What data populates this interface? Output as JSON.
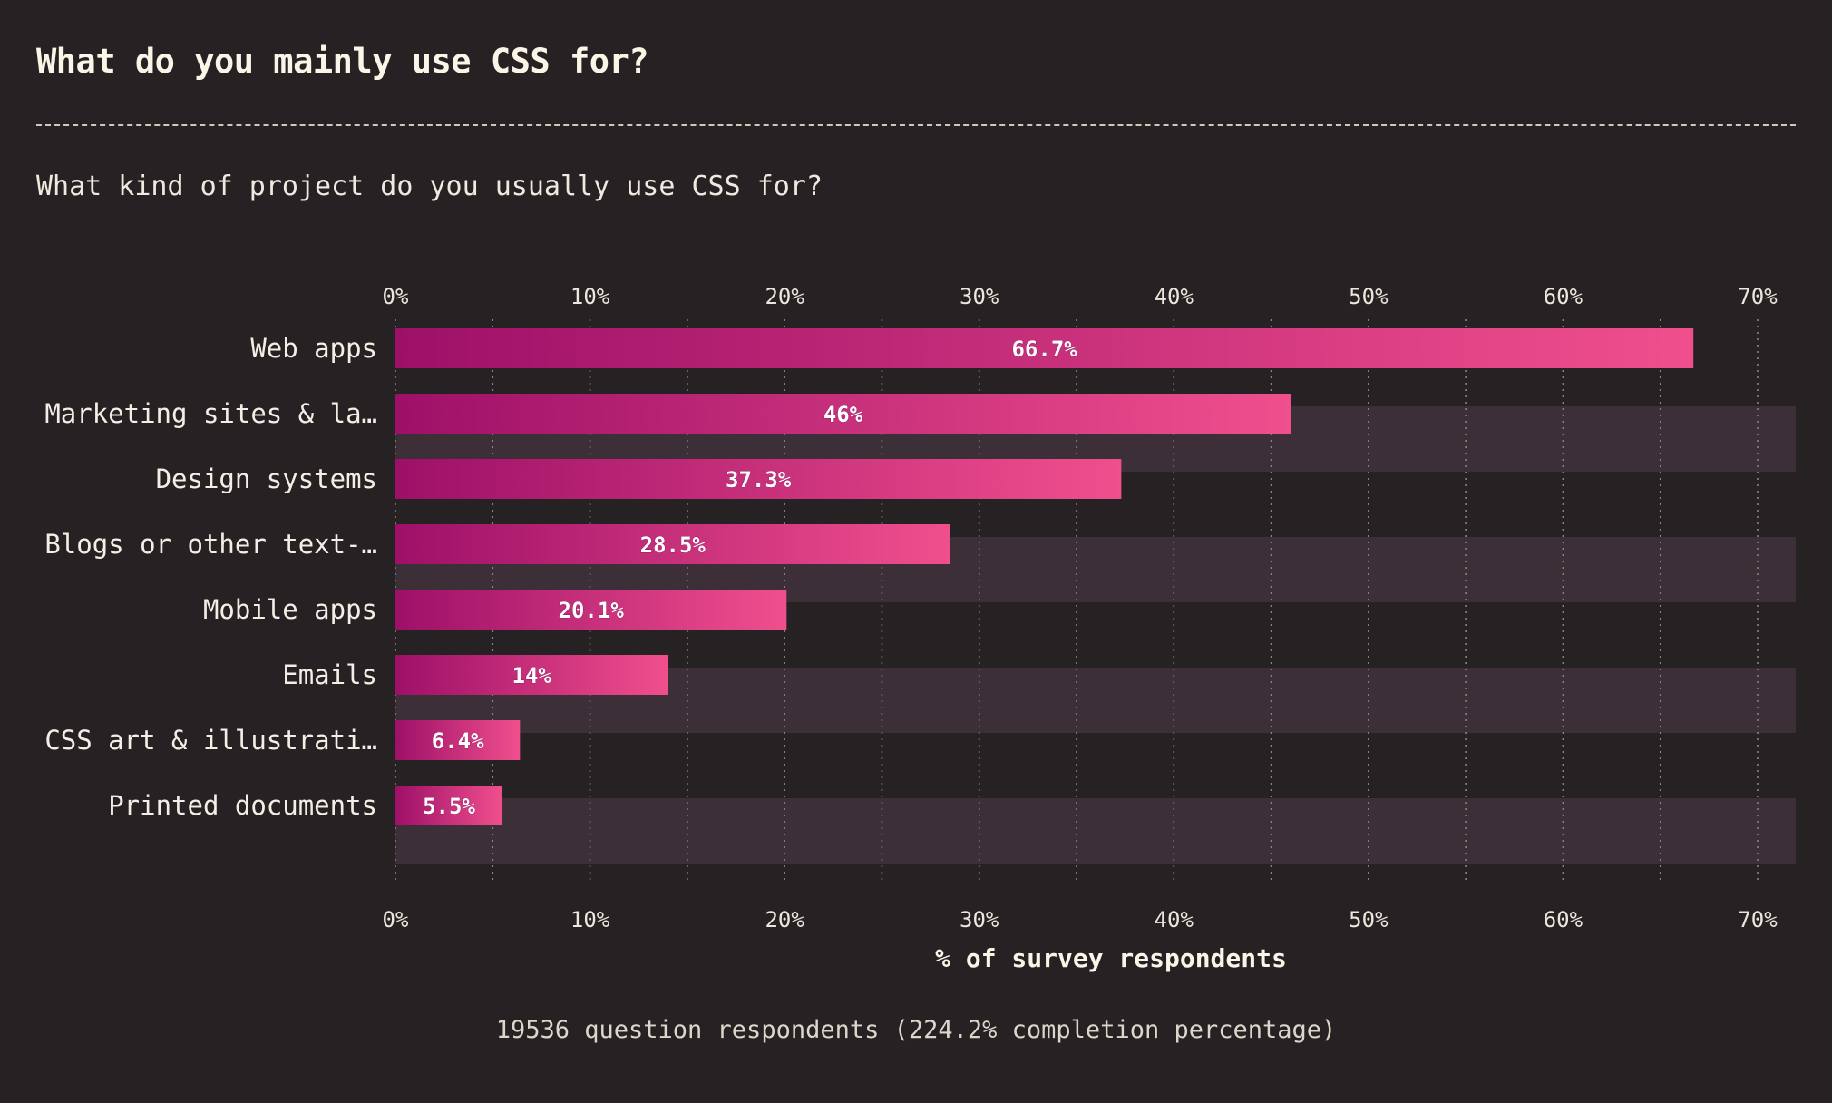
{
  "title": "What do you mainly use CSS for?",
  "subtitle": "What kind of project do you usually use CSS for?",
  "footer": "19536 question respondents (224.2% completion percentage)",
  "colors": {
    "background": "#262223",
    "band": "#3c2f37",
    "bar_start": "#9e1068",
    "bar_end": "#f04f8d"
  },
  "chart_data": {
    "type": "bar",
    "orientation": "horizontal",
    "categories": [
      "Web apps",
      "Marketing sites & la…",
      "Design systems",
      "Blogs or other text-…",
      "Mobile apps",
      "Emails",
      "CSS art & illustrati…",
      "Printed documents"
    ],
    "values": [
      66.7,
      46,
      37.3,
      28.5,
      20.1,
      14,
      6.4,
      5.5
    ],
    "value_labels": [
      "66.7%",
      "46%",
      "37.3%",
      "28.5%",
      "20.1%",
      "14%",
      "6.4%",
      "5.5%"
    ],
    "xlabel": "% of survey respondents",
    "ylabel": "",
    "xlim": [
      0,
      72
    ],
    "x_ticks": [
      0,
      10,
      20,
      30,
      40,
      50,
      60,
      70
    ],
    "x_tick_labels": [
      "0%",
      "10%",
      "20%",
      "30%",
      "40%",
      "50%",
      "60%",
      "70%"
    ],
    "minor_grid_step": 5,
    "grid": true,
    "axis_ticks_top_and_bottom": true,
    "legend": "none"
  }
}
